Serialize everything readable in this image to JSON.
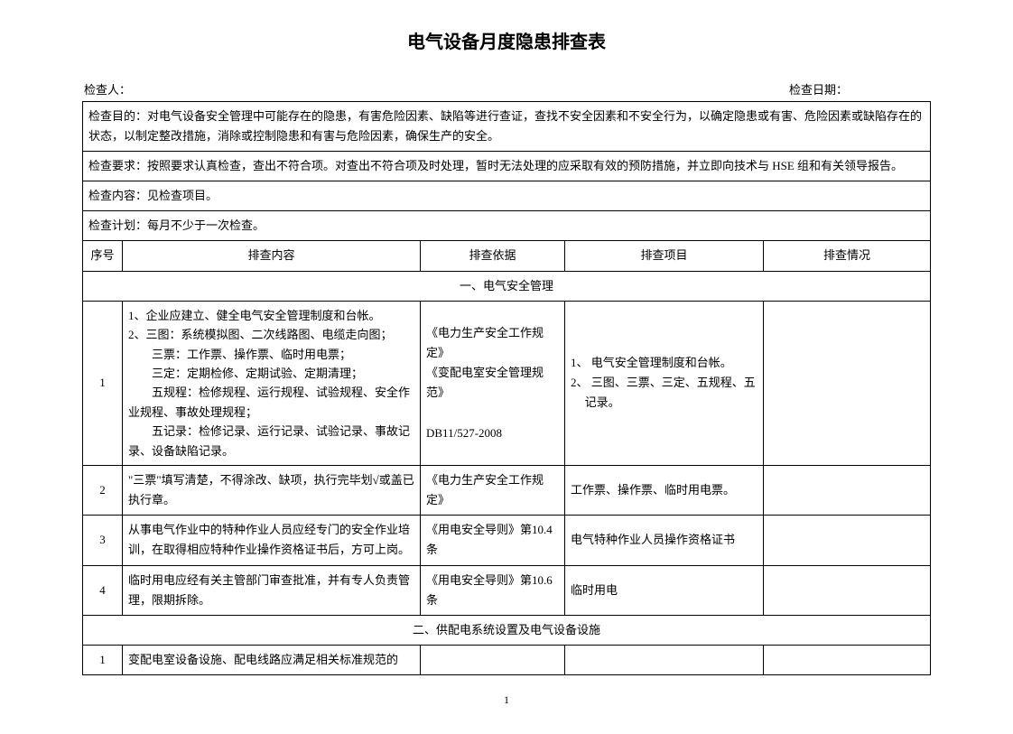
{
  "title": "电气设备月度隐患排查表",
  "header": {
    "inspector_label": "检查人：",
    "date_label": "检查日期："
  },
  "intro_rows": {
    "purpose": "检查目的：对电气设备安全管理中可能存在的隐患，有害危险因素、缺陷等进行查证，查找不安全因素和不安全行为，以确定隐患或有害、危险因素或缺陷存在的状态，以制定整改措施，消除或控制隐患和有害与危险因素，确保生产的安全。",
    "requirement": "检查要求：按照要求认真检查，查出不符合项。对查出不符合项及时处理，暂时无法处理的应采取有效的预防措施，并立即向技术与 HSE 组和有关领导报告。",
    "content_label": "检查内容：见检查项目。",
    "plan": "检查计划：每月不少于一次检查。"
  },
  "columns": {
    "seq": "序号",
    "content": "排查内容",
    "basis": "排查依据",
    "item": "排查项目",
    "status": "排查情况"
  },
  "section1": {
    "title": "一、电气安全管理",
    "rows": [
      {
        "seq": "1",
        "content_lines": [
          "1、企业应建立、健全电气安全管理制度和台帐。",
          "2、三图：系统模拟图、二次线路图、电缆走向图；",
          "　　三票：工作票、操作票、临时用电票；",
          "　　三定：定期检修、定期试验、定期清理；",
          "　　五规程：检修规程、运行规程、试验规程、安全作业规程、事故处理规程；",
          "　　五记录：检修记录、运行记录、试验记录、事故记录、设备缺陷记录。"
        ],
        "basis": "《电力生产安全工作规定》\n《变配电室安全管理规范》\n\nDB11/527-2008",
        "item_lines": [
          "1、 电气安全管理制度和台帐。",
          "2、 三图、三票、三定、五规程、五记录。"
        ],
        "status": ""
      },
      {
        "seq": "2",
        "content": "\"三票\"填写清楚，不得涂改、缺项，执行完毕划√或盖已执行章。",
        "basis": "《电力生产安全工作规定》",
        "item": "工作票、操作票、临时用电票。",
        "status": ""
      },
      {
        "seq": "3",
        "content": "从事电气作业中的特种作业人员应经专门的安全作业培训，在取得相应特种作业操作资格证书后，方可上岗。",
        "basis": "《用电安全导则》第10.4 条",
        "item": "电气特种作业人员操作资格证书",
        "status": ""
      },
      {
        "seq": "4",
        "content": "临时用电应经有关主管部门审查批准，并有专人负责管理，限期拆除。",
        "basis": "《用电安全导则》第10.6 条",
        "item": "临时用电",
        "status": ""
      }
    ]
  },
  "section2": {
    "title": "二、供配电系统设置及电气设备设施",
    "rows": [
      {
        "seq": "1",
        "content": "变配电室设备设施、配电线路应满足相关标准规范的",
        "basis": "",
        "item": "",
        "status": ""
      }
    ]
  },
  "page_number": "1"
}
